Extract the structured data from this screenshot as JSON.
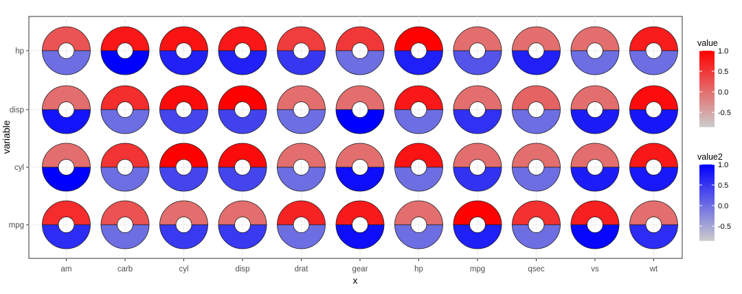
{
  "chart_data": {
    "type": "heatmap",
    "title": "",
    "xlabel": "x",
    "ylabel": "variable",
    "x": [
      "am",
      "carb",
      "cyl",
      "disp",
      "drat",
      "gear",
      "hp",
      "mpg",
      "qsec",
      "vs",
      "wt"
    ],
    "y": [
      "hp",
      "disp",
      "cyl",
      "mpg"
    ],
    "value": [
      [
        0.24,
        0.79,
        0.83,
        0.79,
        0.45,
        0.49,
        0.98,
        0.0,
        0.0,
        0.0,
        0.75
      ],
      [
        0.0,
        0.59,
        0.9,
        1.0,
        0.0,
        0.0,
        0.79,
        0.0,
        0.1,
        0.0,
        0.89
      ],
      [
        0.0,
        0.53,
        1.0,
        0.9,
        0.0,
        0.0,
        0.83,
        0.0,
        0.0,
        0.0,
        0.78
      ],
      [
        0.6,
        0.26,
        0.0,
        0.0,
        0.68,
        0.76,
        0.0,
        0.99,
        0.56,
        0.72,
        0.0
      ]
    ],
    "value2": [
      [
        0.0,
        1.0,
        0.7,
        0.7,
        0.5,
        0.0,
        0.72,
        0.24,
        0.71,
        0.0,
        0.0
      ],
      [
        0.82,
        0.0,
        0.37,
        0.39,
        0.0,
        1.0,
        0.0,
        0.56,
        0.0,
        0.75,
        0.8
      ],
      [
        1.0,
        0.0,
        0.37,
        0.37,
        0.0,
        0.87,
        0.0,
        0.55,
        0.0,
        0.75,
        0.78
      ],
      [
        0.6,
        0.0,
        0.48,
        0.48,
        0.0,
        0.87,
        0.0,
        0.72,
        0.0,
        0.94,
        0.6
      ]
    ],
    "legends": [
      {
        "title": "value",
        "ticks": [
          "1.0",
          "0.5",
          "0.0",
          "-0.5"
        ],
        "color_low": "#cccccc",
        "color_high": "#ff0000"
      },
      {
        "title": "value2",
        "ticks": [
          "1.0",
          "0.5",
          "0.0",
          "-0.5"
        ],
        "color_low": "#cccccc",
        "color_high": "#0000ff"
      }
    ],
    "legend_position": "right",
    "scale_range": [
      -0.85,
      1.0
    ],
    "grid": true
  },
  "colors": {
    "value_low": "#cccccc",
    "value_high": "#ff0000",
    "value2_low": "#cccccc",
    "value2_high": "#0000ff",
    "panel_border": "#333333",
    "grid": "#ebebeb"
  }
}
